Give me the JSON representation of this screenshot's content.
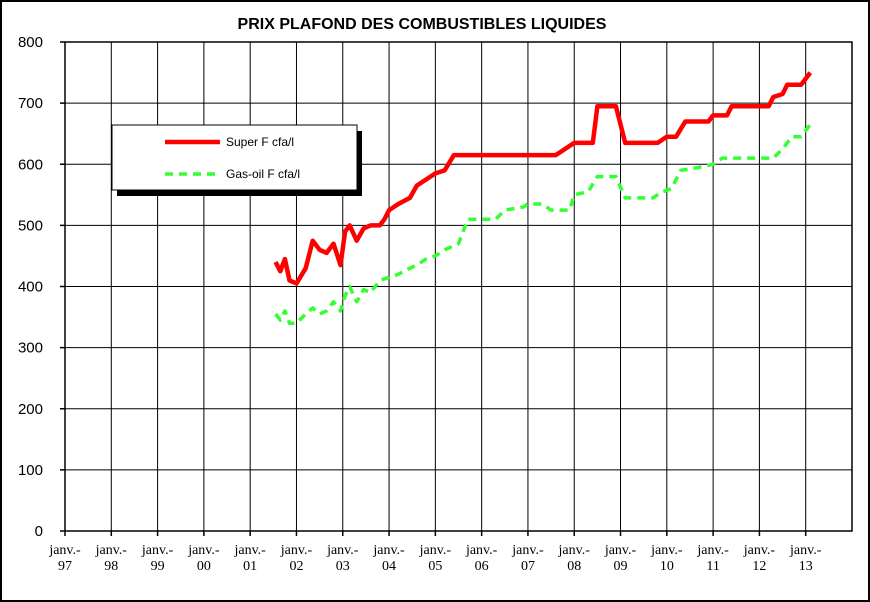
{
  "chart_data": {
    "type": "line",
    "title": "PRIX PLAFOND DES COMBUSTIBLES LIQUIDES",
    "xlim": [
      1997,
      2014
    ],
    "xticks": [
      {
        "value": 1997,
        "label": "janv.-\n97"
      },
      {
        "value": 1998,
        "label": "janv.-\n98"
      },
      {
        "value": 1999,
        "label": "janv.-\n99"
      },
      {
        "value": 2000,
        "label": "janv.-\n00"
      },
      {
        "value": 2001,
        "label": "janv.-\n01"
      },
      {
        "value": 2002,
        "label": "janv.-\n02"
      },
      {
        "value": 2003,
        "label": "janv.-\n03"
      },
      {
        "value": 2004,
        "label": "janv.-\n04"
      },
      {
        "value": 2005,
        "label": "janv.-\n05"
      },
      {
        "value": 2006,
        "label": "janv.-\n06"
      },
      {
        "value": 2007,
        "label": "janv.-\n07"
      },
      {
        "value": 2008,
        "label": "janv.-\n08"
      },
      {
        "value": 2009,
        "label": "janv.-\n09"
      },
      {
        "value": 2010,
        "label": "janv.-\n10"
      },
      {
        "value": 2011,
        "label": "janv.-\n11"
      },
      {
        "value": 2012,
        "label": "janv.-\n12"
      },
      {
        "value": 2013,
        "label": "janv.-\n13"
      }
    ],
    "ylim": [
      0,
      800
    ],
    "yticks": [
      0,
      100,
      200,
      300,
      400,
      500,
      600,
      700,
      800
    ],
    "grid": true,
    "series": [
      {
        "name": "Super F cfa/l",
        "color": "#ff0000",
        "dash": false,
        "x": [
          2001.55,
          2001.65,
          2001.75,
          2001.85,
          2002.0,
          2002.2,
          2002.35,
          2002.5,
          2002.65,
          2002.8,
          2002.95,
          2003.05,
          2003.15,
          2003.3,
          2003.45,
          2003.6,
          2003.8,
          2003.9,
          2004.0,
          2004.2,
          2004.45,
          2004.6,
          2004.8,
          2005.0,
          2005.2,
          2005.4,
          2006.0,
          2007.0,
          2007.6,
          2007.8,
          2008.0,
          2008.4,
          2008.5,
          2008.9,
          2009.1,
          2009.8,
          2010.0,
          2010.2,
          2010.4,
          2010.9,
          2011.0,
          2011.3,
          2011.4,
          2012.2,
          2012.3,
          2012.5,
          2012.6,
          2012.9,
          2013.1
        ],
        "values": [
          440,
          425,
          445,
          410,
          405,
          430,
          475,
          460,
          455,
          470,
          435,
          490,
          500,
          475,
          495,
          500,
          500,
          510,
          525,
          535,
          545,
          565,
          575,
          585,
          590,
          615,
          615,
          615,
          615,
          625,
          635,
          635,
          695,
          695,
          635,
          635,
          645,
          645,
          670,
          670,
          680,
          680,
          695,
          695,
          710,
          715,
          730,
          730,
          750
        ]
      },
      {
        "name": "Gas-oil F cfa/l",
        "color": "#33ff33",
        "dash": true,
        "x": [
          2001.55,
          2001.65,
          2001.75,
          2001.85,
          2002.0,
          2002.2,
          2002.35,
          2002.5,
          2002.65,
          2002.8,
          2002.95,
          2003.05,
          2003.15,
          2003.3,
          2003.45,
          2003.6,
          2003.8,
          2004.0,
          2004.2,
          2004.45,
          2004.6,
          2004.8,
          2005.0,
          2005.2,
          2005.5,
          2005.7,
          2006.3,
          2006.5,
          2006.9,
          2007.0,
          2007.3,
          2007.5,
          2007.9,
          2008.0,
          2008.3,
          2008.5,
          2008.9,
          2009.1,
          2009.7,
          2009.9,
          2010.1,
          2010.3,
          2010.7,
          2011.0,
          2011.2,
          2012.3,
          2012.5,
          2012.7,
          2012.9,
          2013.1
        ],
        "values": [
          355,
          345,
          360,
          340,
          340,
          355,
          365,
          355,
          360,
          375,
          360,
          385,
          400,
          375,
          395,
          390,
          410,
          415,
          420,
          430,
          435,
          445,
          450,
          460,
          470,
          510,
          510,
          525,
          530,
          535,
          535,
          525,
          525,
          550,
          555,
          580,
          580,
          545,
          545,
          555,
          560,
          590,
          595,
          600,
          610,
          610,
          625,
          645,
          645,
          665
        ]
      }
    ]
  }
}
